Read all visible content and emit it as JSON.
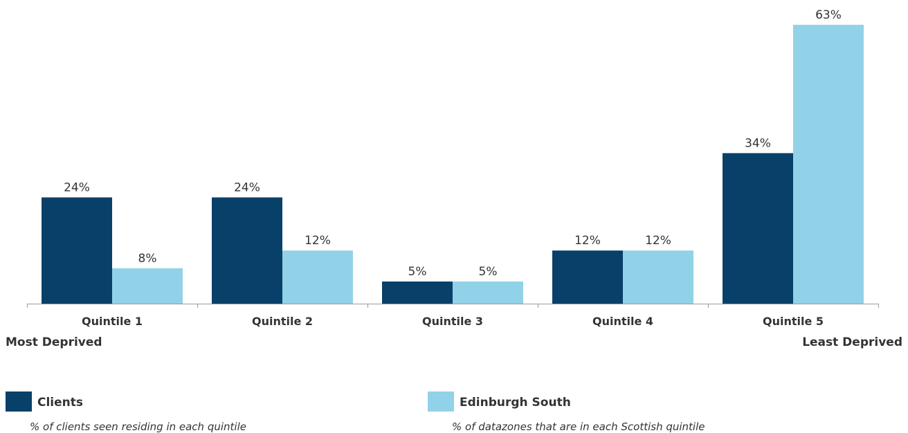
{
  "chart_data": {
    "type": "bar",
    "title": "",
    "xlabel": "",
    "ylabel": "",
    "ylim": [
      0,
      65
    ],
    "grid": false,
    "categories": [
      "Quintile 1",
      "Quintile 2",
      "Quintile 3",
      "Quintile 4",
      "Quintile 5"
    ],
    "series": [
      {
        "name": "Clients",
        "color": "#08406a",
        "values": [
          24,
          24,
          5,
          12,
          34
        ],
        "labels": [
          "24%",
          "24%",
          "5%",
          "12%",
          "34%"
        ]
      },
      {
        "name": "Edinburgh South",
        "color": "#92d2e8",
        "values": [
          8,
          12,
          5,
          12,
          63
        ],
        "labels": [
          "8%",
          "12%",
          "5%",
          "12%",
          "63%"
        ]
      }
    ],
    "axis_end_labels": {
      "left": "Most Deprived",
      "right": "Least Deprived"
    },
    "legend": {
      "position": "bottom",
      "items": [
        {
          "name": "Clients",
          "description": "% of clients seen residing in each quintile"
        },
        {
          "name": "Edinburgh South",
          "description": "% of datazones that are in each Scottish quintile"
        }
      ]
    }
  }
}
